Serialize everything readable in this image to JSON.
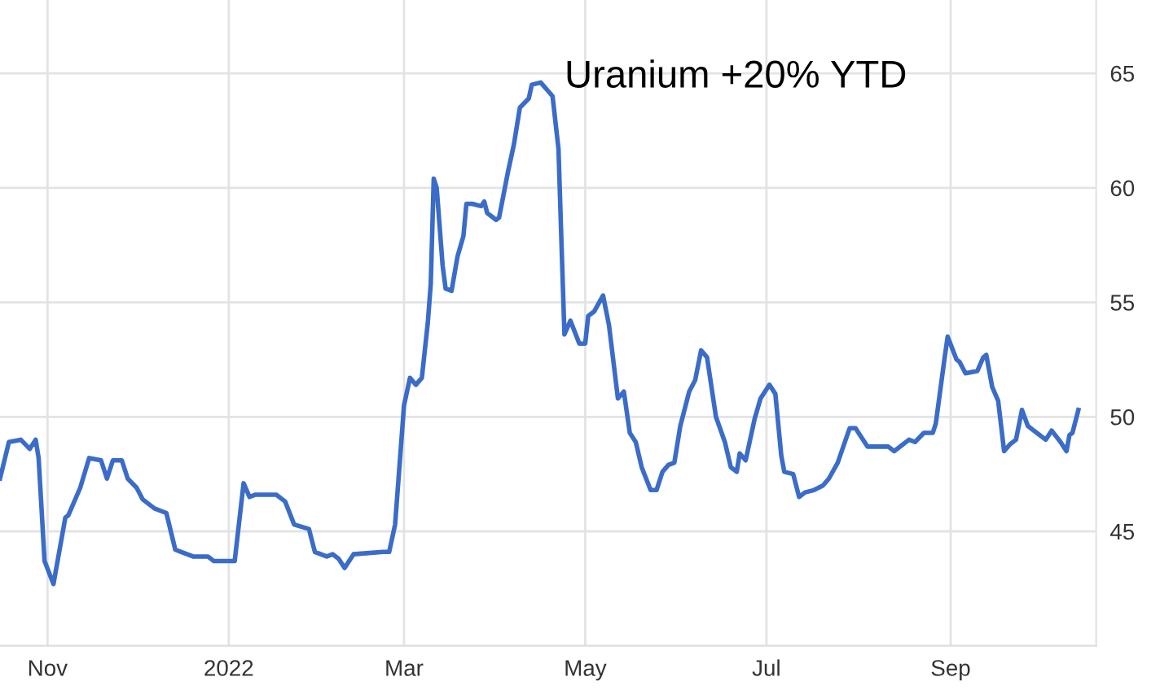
{
  "chart_data": {
    "type": "line",
    "annotations": [
      "Uranium +20% YTD"
    ],
    "x": [
      "2021-10-16",
      "2021-10-19",
      "2021-10-23",
      "2021-10-26",
      "2021-10-28",
      "2021-10-29",
      "2021-10-31",
      "2021-11-03",
      "2021-11-07",
      "2021-11-08",
      "2021-11-12",
      "2021-11-15",
      "2021-11-19",
      "2021-11-21",
      "2021-11-23",
      "2021-11-26",
      "2021-11-28",
      "2021-12-01",
      "2021-12-03",
      "2021-12-07",
      "2021-12-11",
      "2021-12-14",
      "2021-12-16",
      "2021-12-20",
      "2021-12-25",
      "2021-12-27",
      "2022-01-02",
      "2022-01-03",
      "2022-01-06",
      "2022-01-08",
      "2022-01-10",
      "2022-01-17",
      "2022-01-20",
      "2022-01-23",
      "2022-01-28",
      "2022-01-30",
      "2022-02-03",
      "2022-02-05",
      "2022-02-07",
      "2022-02-09",
      "2022-02-12",
      "2022-02-22",
      "2022-02-24",
      "2022-02-26",
      "2022-03-01",
      "2022-03-03",
      "2022-03-05",
      "2022-03-07",
      "2022-03-09",
      "2022-03-10",
      "2022-03-11",
      "2022-03-12",
      "2022-03-14",
      "2022-03-15",
      "2022-03-17",
      "2022-03-19",
      "2022-03-21",
      "2022-03-22",
      "2022-03-24",
      "2022-03-27",
      "2022-03-28",
      "2022-03-29",
      "2022-04-01",
      "2022-04-02",
      "2022-04-05",
      "2022-04-07",
      "2022-04-09",
      "2022-04-12",
      "2022-04-13",
      "2022-04-16",
      "2022-04-18",
      "2022-04-20",
      "2022-04-22",
      "2022-04-23",
      "2022-04-24",
      "2022-04-26",
      "2022-04-29",
      "2022-05-01",
      "2022-05-02",
      "2022-05-04",
      "2022-05-07",
      "2022-05-09",
      "2022-05-12",
      "2022-05-14",
      "2022-05-16",
      "2022-05-18",
      "2022-05-20",
      "2022-05-23",
      "2022-05-25",
      "2022-05-27",
      "2022-05-29",
      "2022-05-31",
      "2022-06-02",
      "2022-06-05",
      "2022-06-07",
      "2022-06-09",
      "2022-06-11",
      "2022-06-14",
      "2022-06-17",
      "2022-06-19",
      "2022-06-21",
      "2022-06-22",
      "2022-06-24",
      "2022-06-27",
      "2022-06-29",
      "2022-07-01",
      "2022-07-02",
      "2022-07-04",
      "2022-07-06",
      "2022-07-07",
      "2022-07-10",
      "2022-07-12",
      "2022-07-14",
      "2022-07-17",
      "2022-07-20",
      "2022-07-22",
      "2022-07-25",
      "2022-07-29",
      "2022-07-31",
      "2022-08-01",
      "2022-08-04",
      "2022-08-11",
      "2022-08-13",
      "2022-08-16",
      "2022-08-18",
      "2022-08-20",
      "2022-08-23",
      "2022-08-26",
      "2022-08-27",
      "2022-08-30",
      "2022-08-31",
      "2022-09-03",
      "2022-09-04",
      "2022-09-06",
      "2022-09-10",
      "2022-09-12",
      "2022-09-13",
      "2022-09-15",
      "2022-09-17",
      "2022-09-19",
      "2022-09-21",
      "2022-09-23",
      "2022-09-25",
      "2022-09-27",
      "2022-09-30",
      "2022-10-03",
      "2022-10-05",
      "2022-10-08",
      "2022-10-10",
      "2022-10-11",
      "2022-10-12",
      "2022-10-14"
    ],
    "series": [
      {
        "color": "#3a6cc8",
        "values": [
          47.3,
          48.9,
          49.0,
          48.6,
          49.0,
          48.2,
          43.7,
          42.7,
          45.6,
          45.7,
          46.9,
          48.2,
          48.1,
          47.3,
          48.1,
          48.1,
          47.3,
          46.9,
          46.4,
          46.0,
          45.8,
          44.2,
          44.1,
          43.9,
          43.9,
          43.7,
          43.7,
          43.7,
          47.1,
          46.5,
          46.6,
          46.6,
          46.3,
          45.3,
          45.1,
          44.1,
          43.9,
          44.0,
          43.8,
          43.4,
          44.0,
          44.1,
          44.1,
          45.3,
          50.5,
          51.7,
          51.4,
          51.7,
          54.1,
          55.8,
          60.4,
          60.0,
          56.6,
          55.6,
          55.5,
          57.0,
          57.9,
          59.3,
          59.3,
          59.2,
          59.4,
          58.9,
          58.6,
          58.7,
          60.7,
          61.9,
          63.5,
          63.9,
          64.5,
          64.6,
          64.3,
          64.0,
          61.7,
          57.6,
          53.6,
          54.2,
          53.2,
          53.2,
          54.4,
          54.6,
          55.3,
          54.0,
          50.8,
          51.1,
          49.3,
          48.9,
          47.8,
          46.8,
          46.8,
          47.6,
          47.9,
          48.0,
          49.6,
          51.1,
          51.6,
          52.9,
          52.6,
          50.0,
          48.9,
          47.8,
          47.6,
          48.4,
          48.1,
          49.9,
          50.8,
          51.2,
          51.4,
          51.0,
          48.3,
          47.6,
          47.5,
          46.5,
          46.7,
          46.8,
          47.0,
          47.3,
          48.0,
          49.5,
          49.5,
          49.3,
          48.7,
          48.7,
          48.5,
          48.8,
          49.0,
          48.9,
          49.3,
          49.3,
          49.7,
          52.6,
          53.5,
          52.5,
          52.4,
          51.9,
          52.0,
          52.6,
          52.7,
          51.3,
          50.7,
          48.5,
          48.8,
          49.0,
          50.3,
          49.6,
          49.3,
          49.0,
          49.4,
          48.9,
          48.5,
          49.2,
          49.3,
          50.3
        ]
      }
    ],
    "xlim": [
      "2021-10-16",
      "2022-10-20"
    ],
    "xticks": [
      {
        "value": "2021-11-01",
        "label": "Nov"
      },
      {
        "value": "2022-01-01",
        "label": "2022"
      },
      {
        "value": "2022-03-01",
        "label": "Mar"
      },
      {
        "value": "2022-05-01",
        "label": "May"
      },
      {
        "value": "2022-07-01",
        "label": "Jul"
      },
      {
        "value": "2022-09-01",
        "label": "Sep"
      }
    ],
    "ylim": [
      40,
      68.2
    ],
    "yticks": [
      45,
      50,
      55,
      60,
      65
    ],
    "grid": true,
    "marker": "none",
    "line_style": "solid"
  }
}
